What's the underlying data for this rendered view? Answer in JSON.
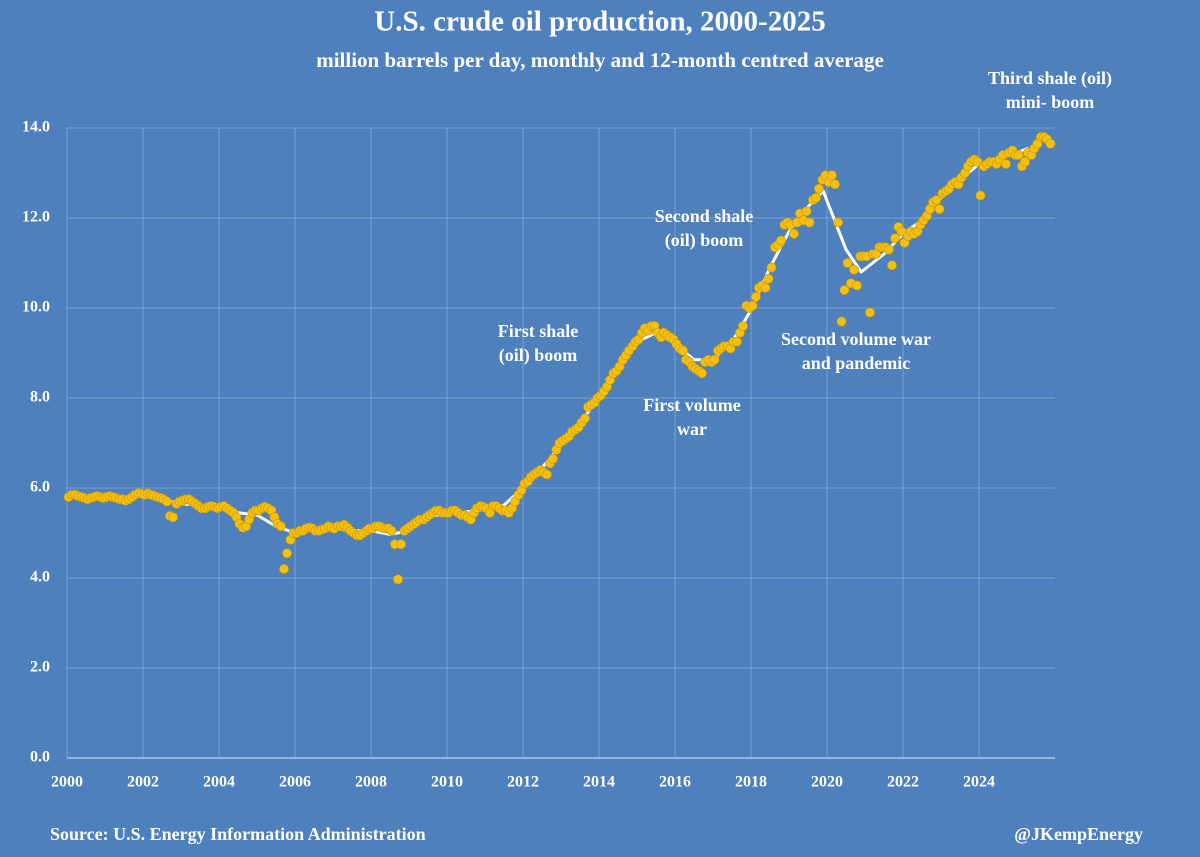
{
  "chart_data": {
    "type": "scatter-line",
    "title": "U.S. crude oil production, 2000-2025",
    "subtitle": "million barrels per day, monthly and 12-month centred average",
    "source": "Source: U.S. Energy Information Administration",
    "credit": "@JKempEnergy",
    "background": "#4e80bd",
    "grid": true,
    "xlim": [
      2000,
      2026
    ],
    "xticks": [
      2000,
      2002,
      2004,
      2006,
      2008,
      2010,
      2012,
      2014,
      2016,
      2018,
      2020,
      2022,
      2024
    ],
    "ylim": [
      0,
      14
    ],
    "yticks": [
      {
        "value": 0,
        "label": "0.0"
      },
      {
        "value": 2,
        "label": "2.0"
      },
      {
        "value": 4,
        "label": "4.0"
      },
      {
        "value": 6,
        "label": "6.0"
      },
      {
        "value": 8,
        "label": "8.0"
      },
      {
        "value": 10,
        "label": "10.0"
      },
      {
        "value": 12,
        "label": "12.0"
      },
      {
        "value": 14,
        "label": "14.0"
      }
    ],
    "annotations": [
      [
        "First shale",
        "(oil) boom"
      ],
      [
        "Second shale",
        "(oil) boom"
      ],
      [
        "First volume",
        "war"
      ],
      [
        "Second volume war",
        "and pandemic"
      ],
      [
        "Third shale (oil)",
        "mini- boom"
      ]
    ],
    "series": [
      {
        "kind": "line",
        "color": "#ffffff",
        "x": [
          2000.5,
          2001.0,
          2001.5,
          2002.0,
          2002.5,
          2003.0,
          2003.5,
          2004.0,
          2004.5,
          2005.0,
          2005.5,
          2006.0,
          2006.5,
          2007.0,
          2007.5,
          2008.0,
          2008.5,
          2009.0,
          2009.5,
          2010.0,
          2010.5,
          2011.0,
          2011.5,
          2012.0,
          2012.5,
          2013.0,
          2013.5,
          2014.0,
          2014.5,
          2015.0,
          2015.5,
          2016.0,
          2016.5,
          2017.0,
          2017.5,
          2018.0,
          2018.5,
          2019.0,
          2019.5,
          2019.9,
          2020.5,
          2020.9,
          2021.5,
          2022.0,
          2022.5,
          2023.0,
          2023.5,
          2024.0,
          2024.5,
          2025.0,
          2025.3
        ],
        "values": [
          5.8,
          5.8,
          5.8,
          5.82,
          5.75,
          5.65,
          5.62,
          5.57,
          5.45,
          5.4,
          5.15,
          5.0,
          5.08,
          5.1,
          5.05,
          5.05,
          4.97,
          5.05,
          5.35,
          5.45,
          5.47,
          5.52,
          5.62,
          6.0,
          6.45,
          6.95,
          7.45,
          8.0,
          8.65,
          9.25,
          9.45,
          9.2,
          8.85,
          8.85,
          9.25,
          9.95,
          10.9,
          11.7,
          12.25,
          12.6,
          11.3,
          10.8,
          11.2,
          11.65,
          11.95,
          12.45,
          12.85,
          13.2,
          13.3,
          13.45,
          13.55
        ]
      },
      {
        "kind": "dots",
        "color": "#f5bf0f",
        "x": [
          2000.04,
          2000.13,
          2000.21,
          2000.29,
          2000.38,
          2000.46,
          2000.54,
          2000.63,
          2000.71,
          2000.79,
          2000.88,
          2000.96,
          2001.04,
          2001.13,
          2001.21,
          2001.29,
          2001.38,
          2001.46,
          2001.54,
          2001.63,
          2001.71,
          2001.79,
          2001.88,
          2001.96,
          2002.04,
          2002.13,
          2002.21,
          2002.29,
          2002.38,
          2002.46,
          2002.54,
          2002.63,
          2002.71,
          2002.79,
          2002.88,
          2002.96,
          2003.04,
          2003.13,
          2003.21,
          2003.29,
          2003.38,
          2003.46,
          2003.54,
          2003.63,
          2003.71,
          2003.79,
          2003.88,
          2003.96,
          2004.04,
          2004.13,
          2004.21,
          2004.29,
          2004.38,
          2004.46,
          2004.54,
          2004.63,
          2004.71,
          2004.79,
          2004.88,
          2004.96,
          2005.04,
          2005.13,
          2005.21,
          2005.29,
          2005.38,
          2005.46,
          2005.54,
          2005.63,
          2005.71,
          2005.79,
          2005.88,
          2005.96,
          2006.04,
          2006.13,
          2006.21,
          2006.29,
          2006.38,
          2006.46,
          2006.54,
          2006.63,
          2006.71,
          2006.79,
          2006.88,
          2006.96,
          2007.04,
          2007.13,
          2007.21,
          2007.29,
          2007.38,
          2007.46,
          2007.54,
          2007.63,
          2007.71,
          2007.79,
          2007.88,
          2007.96,
          2008.04,
          2008.13,
          2008.21,
          2008.29,
          2008.38,
          2008.46,
          2008.54,
          2008.63,
          2008.71,
          2008.79,
          2008.88,
          2008.96,
          2009.04,
          2009.13,
          2009.21,
          2009.29,
          2009.38,
          2009.46,
          2009.54,
          2009.63,
          2009.71,
          2009.79,
          2009.88,
          2009.96,
          2010.04,
          2010.13,
          2010.21,
          2010.29,
          2010.38,
          2010.46,
          2010.54,
          2010.63,
          2010.71,
          2010.79,
          2010.88,
          2010.96,
          2011.04,
          2011.13,
          2011.21,
          2011.29,
          2011.38,
          2011.46,
          2011.54,
          2011.63,
          2011.71,
          2011.79,
          2011.88,
          2011.96,
          2012.04,
          2012.13,
          2012.21,
          2012.29,
          2012.38,
          2012.46,
          2012.54,
          2012.63,
          2012.71,
          2012.79,
          2012.88,
          2012.96,
          2013.04,
          2013.13,
          2013.21,
          2013.29,
          2013.38,
          2013.46,
          2013.54,
          2013.63,
          2013.71,
          2013.79,
          2013.88,
          2013.96,
          2014.04,
          2014.13,
          2014.21,
          2014.29,
          2014.38,
          2014.46,
          2014.54,
          2014.63,
          2014.71,
          2014.79,
          2014.88,
          2014.96,
          2015.04,
          2015.13,
          2015.21,
          2015.29,
          2015.38,
          2015.46,
          2015.54,
          2015.63,
          2015.71,
          2015.79,
          2015.88,
          2015.96,
          2016.04,
          2016.13,
          2016.21,
          2016.29,
          2016.38,
          2016.46,
          2016.54,
          2016.63,
          2016.71,
          2016.79,
          2016.88,
          2016.96,
          2017.04,
          2017.13,
          2017.21,
          2017.29,
          2017.38,
          2017.46,
          2017.54,
          2017.63,
          2017.71,
          2017.79,
          2017.88,
          2017.96,
          2018.04,
          2018.13,
          2018.21,
          2018.29,
          2018.38,
          2018.46,
          2018.54,
          2018.63,
          2018.71,
          2018.79,
          2018.88,
          2018.96,
          2019.04,
          2019.13,
          2019.21,
          2019.29,
          2019.38,
          2019.46,
          2019.54,
          2019.63,
          2019.71,
          2019.79,
          2019.88,
          2019.96,
          2020.04,
          2020.13,
          2020.21,
          2020.29,
          2020.38,
          2020.46,
          2020.54,
          2020.63,
          2020.71,
          2020.79,
          2020.88,
          2020.96,
          2021.04,
          2021.13,
          2021.21,
          2021.29,
          2021.38,
          2021.46,
          2021.54,
          2021.63,
          2021.71,
          2021.79,
          2021.88,
          2021.96,
          2022.04,
          2022.13,
          2022.21,
          2022.29,
          2022.38,
          2022.46,
          2022.54,
          2022.63,
          2022.71,
          2022.79,
          2022.88,
          2022.96,
          2023.04,
          2023.13,
          2023.21,
          2023.29,
          2023.38,
          2023.46,
          2023.54,
          2023.63,
          2023.71,
          2023.79,
          2023.88,
          2023.96,
          2024.04,
          2024.13,
          2024.21,
          2024.29,
          2024.38,
          2024.46,
          2024.54,
          2024.63,
          2024.71,
          2024.79,
          2024.88,
          2024.96,
          2025.04,
          2025.13,
          2025.21,
          2025.29,
          2025.38,
          2025.46,
          2025.54,
          2025.63,
          2025.71,
          2025.79,
          2025.88
        ],
        "values": [
          5.8,
          5.85,
          5.85,
          5.82,
          5.8,
          5.78,
          5.75,
          5.78,
          5.8,
          5.82,
          5.8,
          5.78,
          5.8,
          5.82,
          5.8,
          5.78,
          5.75,
          5.75,
          5.72,
          5.75,
          5.8,
          5.85,
          5.88,
          5.87,
          5.85,
          5.88,
          5.85,
          5.83,
          5.8,
          5.78,
          5.75,
          5.7,
          5.38,
          5.35,
          5.65,
          5.7,
          5.72,
          5.75,
          5.75,
          5.7,
          5.65,
          5.6,
          5.55,
          5.55,
          5.58,
          5.6,
          5.58,
          5.55,
          5.58,
          5.6,
          5.55,
          5.5,
          5.45,
          5.35,
          5.2,
          5.12,
          5.15,
          5.3,
          5.45,
          5.5,
          5.5,
          5.55,
          5.58,
          5.55,
          5.5,
          5.35,
          5.2,
          5.15,
          4.2,
          4.55,
          4.85,
          5.0,
          5.0,
          5.05,
          5.05,
          5.1,
          5.12,
          5.1,
          5.05,
          5.05,
          5.08,
          5.1,
          5.15,
          5.12,
          5.1,
          5.15,
          5.15,
          5.18,
          5.12,
          5.05,
          5.0,
          4.95,
          4.95,
          5.0,
          5.05,
          5.1,
          5.1,
          5.15,
          5.15,
          5.12,
          5.1,
          5.1,
          5.05,
          4.75,
          3.97,
          4.75,
          5.05,
          5.1,
          5.15,
          5.2,
          5.25,
          5.3,
          5.3,
          5.35,
          5.4,
          5.45,
          5.5,
          5.5,
          5.45,
          5.45,
          5.45,
          5.5,
          5.5,
          5.45,
          5.4,
          5.4,
          5.35,
          5.3,
          5.45,
          5.55,
          5.6,
          5.58,
          5.55,
          5.45,
          5.6,
          5.6,
          5.55,
          5.5,
          5.5,
          5.45,
          5.55,
          5.7,
          5.85,
          5.95,
          6.1,
          6.15,
          6.25,
          6.3,
          6.35,
          6.4,
          6.35,
          6.3,
          6.55,
          6.65,
          6.85,
          7.0,
          7.05,
          7.1,
          7.15,
          7.25,
          7.3,
          7.35,
          7.45,
          7.55,
          7.8,
          7.85,
          7.9,
          8.0,
          8.05,
          8.15,
          8.25,
          8.4,
          8.55,
          8.6,
          8.7,
          8.85,
          8.95,
          9.05,
          9.15,
          9.25,
          9.3,
          9.45,
          9.55,
          9.5,
          9.6,
          9.6,
          9.45,
          9.35,
          9.45,
          9.4,
          9.35,
          9.3,
          9.2,
          9.1,
          9.05,
          8.85,
          8.8,
          8.7,
          8.65,
          8.6,
          8.55,
          8.8,
          8.85,
          8.8,
          8.85,
          9.05,
          9.1,
          9.15,
          9.15,
          9.1,
          9.25,
          9.25,
          9.45,
          9.6,
          10.05,
          10.0,
          10.05,
          10.25,
          10.45,
          10.5,
          10.45,
          10.65,
          10.9,
          11.35,
          11.4,
          11.5,
          11.85,
          11.9,
          11.85,
          11.65,
          11.9,
          12.1,
          11.95,
          12.15,
          11.9,
          12.4,
          12.45,
          12.65,
          12.85,
          12.95,
          12.8,
          12.95,
          12.75,
          11.9,
          9.7,
          10.4,
          11.0,
          10.55,
          10.85,
          10.5,
          11.15,
          11.15,
          11.15,
          9.9,
          11.2,
          11.2,
          11.35,
          11.35,
          11.35,
          11.3,
          10.95,
          11.55,
          11.8,
          11.7,
          11.45,
          11.6,
          11.7,
          11.65,
          11.7,
          11.85,
          11.95,
          12.05,
          12.2,
          12.35,
          12.4,
          12.2,
          12.55,
          12.6,
          12.65,
          12.75,
          12.8,
          12.75,
          12.9,
          13.0,
          13.15,
          13.25,
          13.3,
          13.25,
          12.5,
          13.15,
          13.2,
          13.25,
          13.25,
          13.2,
          13.3,
          13.4,
          13.2,
          13.45,
          13.5,
          13.4,
          13.4,
          13.15,
          13.25,
          13.45,
          13.4,
          13.55,
          13.65,
          13.8,
          13.8,
          13.75,
          13.65
        ]
      }
    ]
  }
}
